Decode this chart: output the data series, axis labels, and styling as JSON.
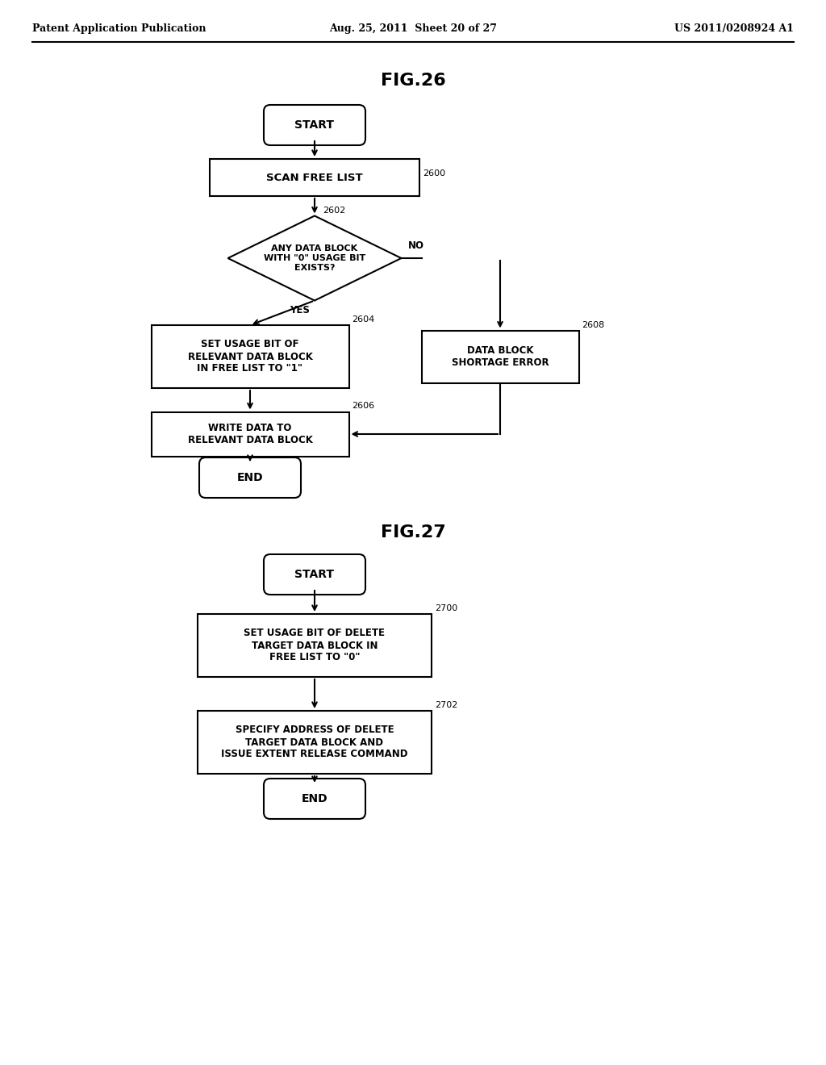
{
  "background_color": "#ffffff",
  "header_left": "Patent Application Publication",
  "header_center": "Aug. 25, 2011  Sheet 20 of 27",
  "header_right": "US 2011/0208924 A1",
  "fig26_title": "FIG.26",
  "fig27_title": "FIG.27"
}
